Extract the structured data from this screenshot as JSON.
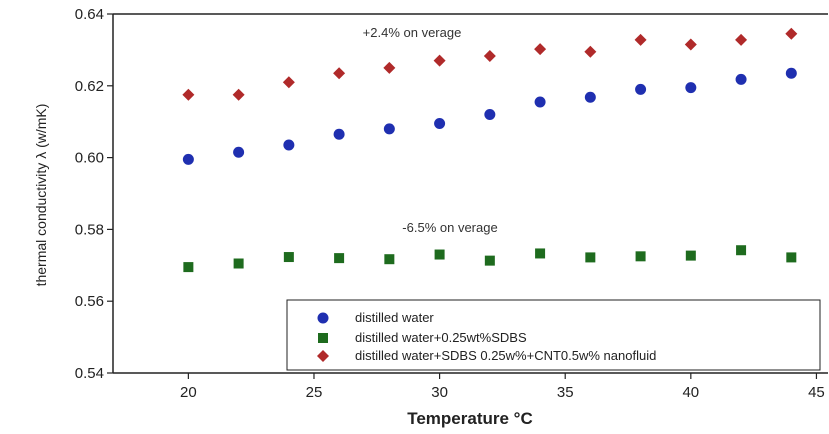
{
  "chart_data": {
    "type": "scatter",
    "xlabel": "Temperature °C",
    "ylabel": "thermal conductivity λ (w/mK)",
    "xlim": [
      17,
      45.5
    ],
    "ylim": [
      0.54,
      0.64
    ],
    "xticks": [
      20,
      25,
      30,
      35,
      40,
      45
    ],
    "yticks": [
      0.54,
      0.56,
      0.58,
      0.6,
      0.62,
      0.64
    ],
    "grid": false,
    "legend_position": "bottom-right",
    "annotations": [
      "+2.4% on verage",
      "-6.5% on verage"
    ],
    "series": [
      {
        "name": "distilled water",
        "color": "#1f2fb0",
        "marker": "circle",
        "x": [
          20,
          22,
          24,
          26,
          28,
          30,
          32,
          34,
          36,
          38,
          40,
          42,
          44
        ],
        "y": [
          0.5995,
          0.6015,
          0.6035,
          0.6065,
          0.608,
          0.6095,
          0.612,
          0.6155,
          0.6168,
          0.619,
          0.6195,
          0.6218,
          0.6235
        ]
      },
      {
        "name": "distilled water+0.25wt%SDBS",
        "color": "#1e6b1e",
        "marker": "square",
        "x": [
          20,
          22,
          24,
          26,
          28,
          30,
          32,
          34,
          36,
          38,
          40,
          42,
          44
        ],
        "y": [
          0.5695,
          0.5705,
          0.5723,
          0.572,
          0.5717,
          0.573,
          0.5713,
          0.5733,
          0.5722,
          0.5725,
          0.5727,
          0.5742,
          0.5722
        ]
      },
      {
        "name": "distilled water+SDBS 0.25w%+CNT0.5w% nanofluid",
        "color": "#b02a2a",
        "marker": "diamond",
        "x": [
          20,
          22,
          24,
          26,
          28,
          30,
          32,
          34,
          36,
          38,
          40,
          42,
          44
        ],
        "y": [
          0.6175,
          0.6175,
          0.621,
          0.6235,
          0.625,
          0.627,
          0.6283,
          0.6302,
          0.6295,
          0.6328,
          0.6315,
          0.6328,
          0.6345
        ]
      }
    ]
  }
}
